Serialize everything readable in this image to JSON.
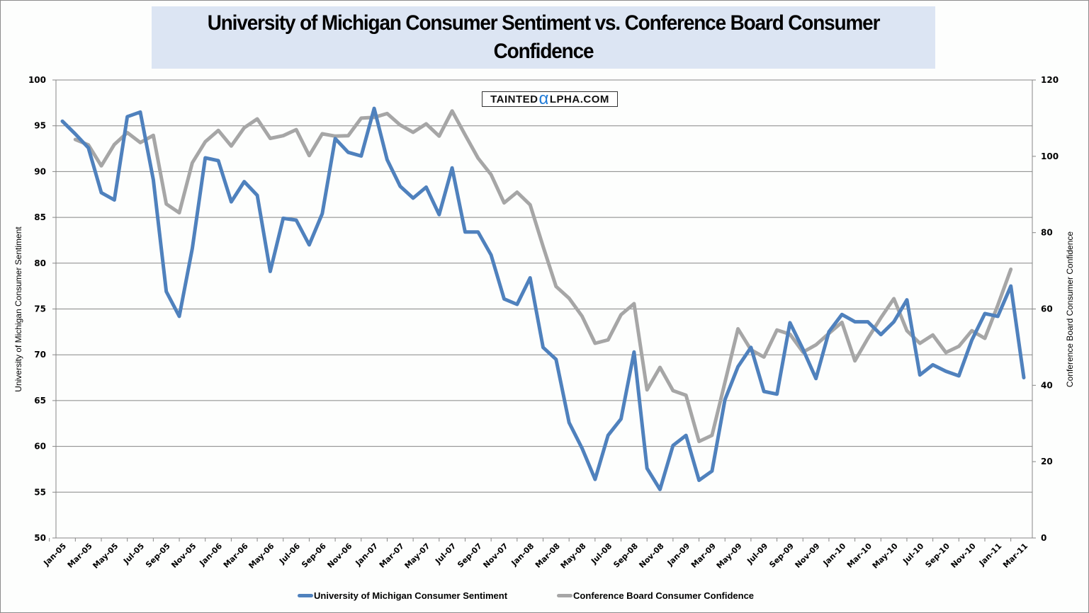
{
  "header": {
    "title_line1": "University of Michigan Consumer Sentiment vs. Conference Board Consumer",
    "title_line2": "Confidence"
  },
  "watermark": {
    "prefix": "TAINTED",
    "alpha": "α",
    "suffix": "LPHA.COM"
  },
  "legend": {
    "items": [
      {
        "label": "University of Michigan Consumer Sentiment",
        "color": "#4f81bd"
      },
      {
        "label": "Conference Board Consumer Confidence",
        "color": "#a6a6a6"
      }
    ]
  },
  "chart_data": {
    "type": "line",
    "title": "University of Michigan Consumer Sentiment vs. Conference Board Consumer Confidence",
    "xlabel": "",
    "ylabel": "University of Michigan Consumer Sentiment",
    "y2label": "Conference Board Consumer Confidence",
    "ylim": [
      50,
      100
    ],
    "y2lim": [
      0,
      120
    ],
    "yticks": [
      50,
      55,
      60,
      65,
      70,
      75,
      80,
      85,
      90,
      95,
      100
    ],
    "y2ticks": [
      0,
      20,
      40,
      60,
      80,
      100,
      120
    ],
    "grid": true,
    "legend_position": "bottom",
    "x": [
      "Jan-05",
      "Feb-05",
      "Mar-05",
      "Apr-05",
      "May-05",
      "Jun-05",
      "Jul-05",
      "Aug-05",
      "Sep-05",
      "Oct-05",
      "Nov-05",
      "Dec-05",
      "Jan-06",
      "Feb-06",
      "Mar-06",
      "Apr-06",
      "May-06",
      "Jun-06",
      "Jul-06",
      "Aug-06",
      "Sep-06",
      "Oct-06",
      "Nov-06",
      "Dec-06",
      "Jan-07",
      "Feb-07",
      "Mar-07",
      "Apr-07",
      "May-07",
      "Jun-07",
      "Jul-07",
      "Aug-07",
      "Sep-07",
      "Oct-07",
      "Nov-07",
      "Dec-07",
      "Jan-08",
      "Feb-08",
      "Mar-08",
      "Apr-08",
      "May-08",
      "Jun-08",
      "Jul-08",
      "Aug-08",
      "Sep-08",
      "Oct-08",
      "Nov-08",
      "Dec-08",
      "Jan-09",
      "Feb-09",
      "Mar-09",
      "Apr-09",
      "May-09",
      "Jun-09",
      "Jul-09",
      "Aug-09",
      "Sep-09",
      "Oct-09",
      "Nov-09",
      "Dec-09",
      "Jan-10",
      "Feb-10",
      "Mar-10",
      "Apr-10",
      "May-10",
      "Jun-10",
      "Jul-10",
      "Aug-10",
      "Sep-10",
      "Oct-10",
      "Nov-10",
      "Dec-10",
      "Jan-11",
      "Feb-11",
      "Mar-11"
    ],
    "xtick_labels": [
      "Jan-05",
      "Mar-05",
      "May-05",
      "Jul-05",
      "Sep-05",
      "Nov-05",
      "Jan-06",
      "Mar-06",
      "May-06",
      "Jul-06",
      "Sep-06",
      "Nov-06",
      "Jan-07",
      "Mar-07",
      "May-07",
      "Jul-07",
      "Sep-07",
      "Nov-07",
      "Jan-08",
      "Mar-08",
      "May-08",
      "Jul-08",
      "Sep-08",
      "Nov-08",
      "Jan-09",
      "Mar-09",
      "May-09",
      "Jul-09",
      "Sep-09",
      "Nov-09",
      "Jan-10",
      "Mar-10",
      "May-10",
      "Jul-10",
      "Sep-10",
      "Nov-10",
      "Jan-11",
      "Mar-11"
    ],
    "series": [
      {
        "name": "University of Michigan Consumer Sentiment",
        "axis": "left",
        "color": "#4f81bd",
        "values": [
          95.5,
          94.1,
          92.6,
          87.7,
          86.9,
          96.0,
          96.5,
          89.1,
          76.9,
          74.2,
          81.6,
          91.5,
          91.2,
          86.7,
          88.9,
          87.4,
          79.1,
          84.9,
          84.7,
          82.0,
          85.4,
          93.6,
          92.1,
          91.7,
          96.9,
          91.3,
          88.4,
          87.1,
          88.3,
          85.3,
          90.4,
          83.4,
          83.4,
          80.9,
          76.1,
          75.5,
          78.4,
          70.8,
          69.5,
          62.6,
          59.8,
          56.4,
          61.2,
          63.0,
          70.3,
          57.6,
          55.3,
          60.1,
          61.2,
          56.3,
          57.3,
          65.1,
          68.7,
          70.8,
          66.0,
          65.7,
          73.5,
          70.6,
          67.4,
          72.5,
          74.4,
          73.6,
          73.6,
          72.2,
          73.6,
          76.0,
          67.8,
          68.9,
          68.2,
          67.7,
          71.6,
          74.5,
          74.2,
          77.5,
          67.5
        ]
      },
      {
        "name": "Conference Board Consumer Confidence",
        "axis": "right",
        "color": "#a6a6a6",
        "values": [
          null,
          104.4,
          103.0,
          97.5,
          103.1,
          106.2,
          103.6,
          105.5,
          87.5,
          85.2,
          98.3,
          103.8,
          106.8,
          102.7,
          107.5,
          109.8,
          104.7,
          105.4,
          107.0,
          100.2,
          105.9,
          105.3,
          105.4,
          110.0,
          110.2,
          111.2,
          108.2,
          106.3,
          108.5,
          105.3,
          111.9,
          105.6,
          99.5,
          95.2,
          87.8,
          90.6,
          87.3,
          76.4,
          65.9,
          62.8,
          58.1,
          51.0,
          51.9,
          58.5,
          61.4,
          38.8,
          44.7,
          38.6,
          37.4,
          25.3,
          26.9,
          40.8,
          54.8,
          49.3,
          47.4,
          54.5,
          53.4,
          48.7,
          50.6,
          53.6,
          56.5,
          46.4,
          52.3,
          57.7,
          62.7,
          54.3,
          51.0,
          53.2,
          48.6,
          50.2,
          54.3,
          52.3,
          61.0,
          70.4,
          null
        ]
      }
    ]
  }
}
